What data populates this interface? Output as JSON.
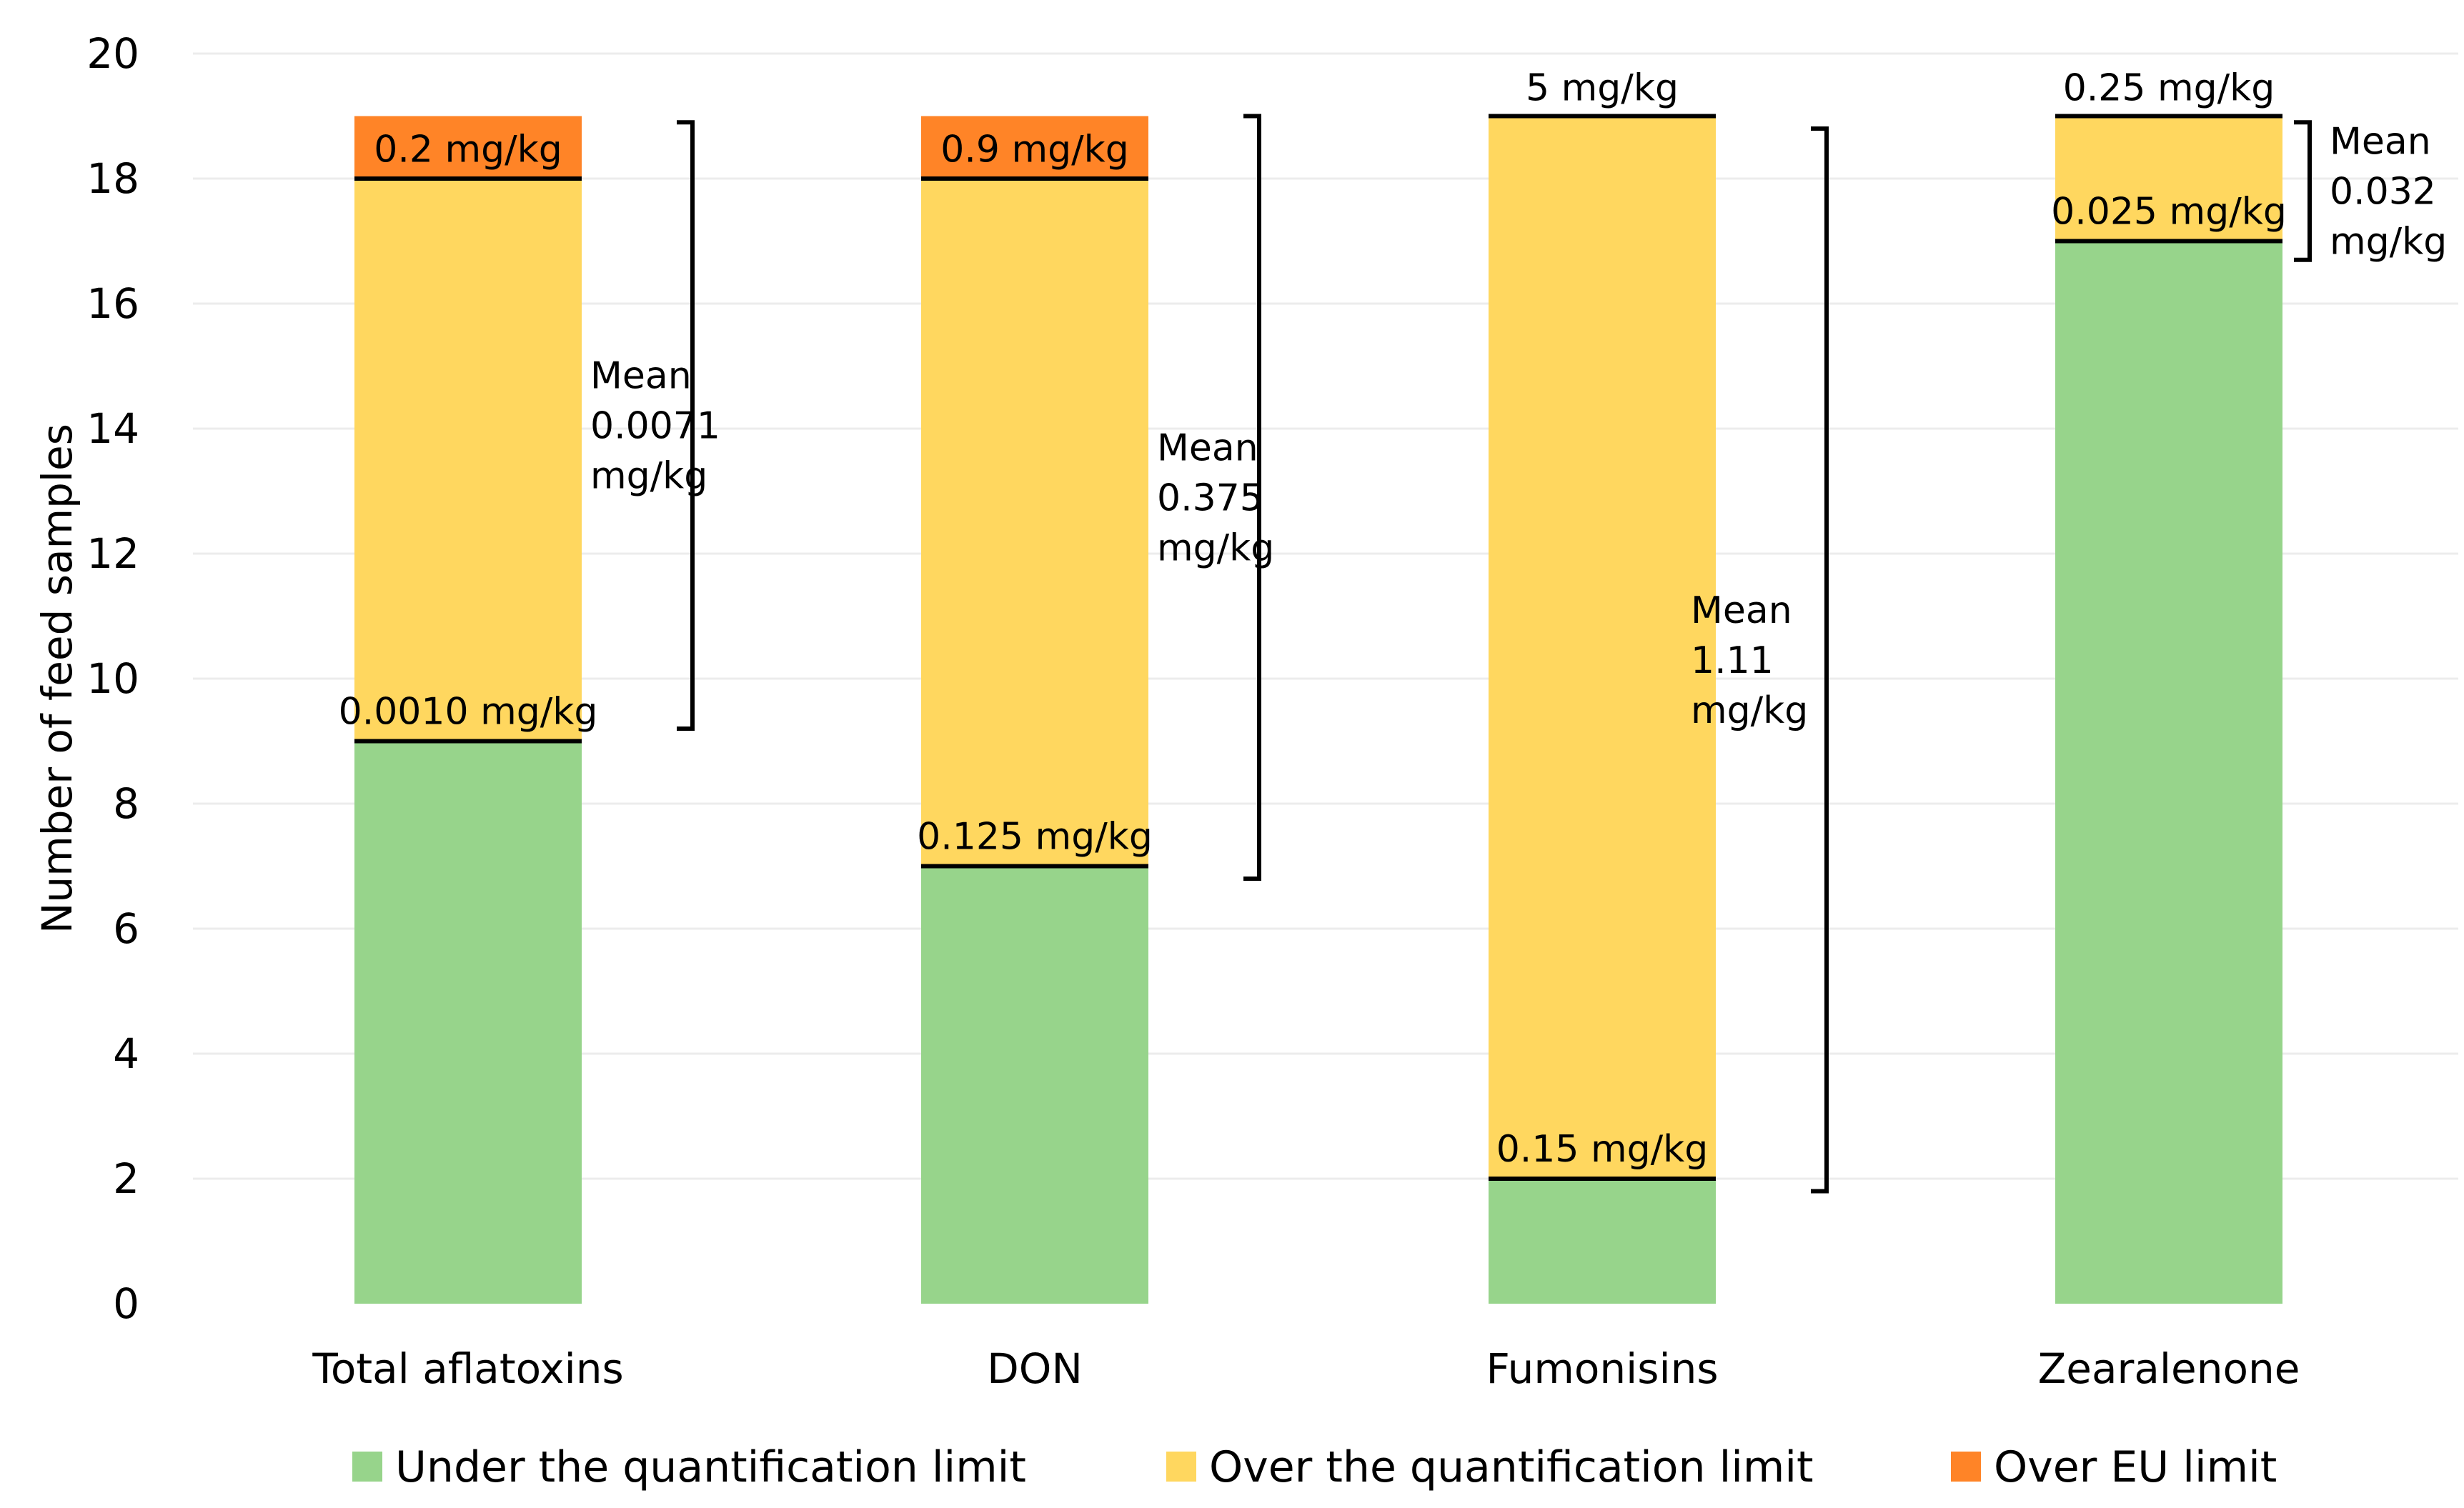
{
  "chart_data": {
    "type": "bar",
    "stacked": true,
    "title": "",
    "xlabel": "",
    "ylabel": "Number of feed samples",
    "ylim": [
      0,
      20
    ],
    "yticks": [
      0,
      2,
      4,
      6,
      8,
      10,
      12,
      14,
      16,
      18,
      20
    ],
    "grid": true,
    "legend_position": "bottom",
    "categories": [
      "Total aflatoxins",
      "DON",
      "Fumonisins",
      "Zearalenone"
    ],
    "series": [
      {
        "name": "Under the quantification limit",
        "color": "#97D48B",
        "values": [
          9,
          7,
          2,
          17
        ]
      },
      {
        "name": "Over the quantification limit",
        "color": "#FFD75F",
        "values": [
          9,
          11,
          17,
          2
        ]
      },
      {
        "name": "Over EU limit",
        "color": "#FF8427",
        "values": [
          1,
          1,
          0,
          0
        ]
      }
    ],
    "annotations": [
      {
        "category": "Total aflatoxins",
        "lower_label": "0.0010 mg/kg",
        "upper_label": "0.2 mg/kg",
        "upper_label_in_top_segment": true,
        "mean_lines": [
          "Mean",
          "0.0071",
          "mg/kg"
        ],
        "bracket_range": [
          9.2,
          18.9
        ]
      },
      {
        "category": "DON",
        "lower_label": "0.125 mg/kg",
        "upper_label": "0.9 mg/kg",
        "upper_label_in_top_segment": true,
        "mean_lines": [
          "Mean",
          "0.375",
          "mg/kg"
        ],
        "bracket_range": [
          6.8,
          19
        ]
      },
      {
        "category": "Fumonisins",
        "lower_label": "0.15 mg/kg",
        "upper_label": "5 mg/kg",
        "upper_label_in_top_segment": false,
        "mean_lines": [
          "Mean",
          "1.11",
          "mg/kg"
        ],
        "bracket_range": [
          1.8,
          18.8
        ]
      },
      {
        "category": "Zearalenone",
        "lower_label": "0.025 mg/kg",
        "upper_label": "0.25 mg/kg",
        "upper_label_in_top_segment": false,
        "mean_lines": [
          "Mean",
          "0.032",
          "mg/kg"
        ],
        "bracket_range": [
          16.7,
          18.9
        ]
      }
    ]
  }
}
